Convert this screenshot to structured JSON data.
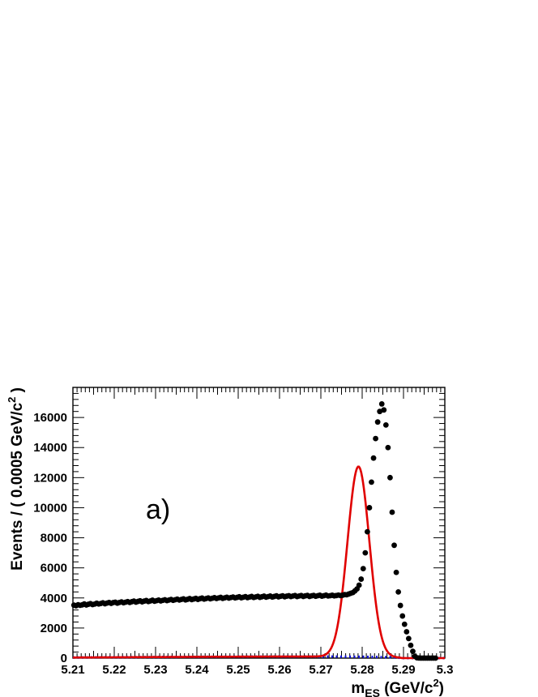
{
  "chart_data": {
    "type": "scatter",
    "panel_label": "a)",
    "xlabel": {
      "main": "m",
      "sub": "ES",
      "unit_open": " (GeV/c",
      "sup": "2",
      "unit_close": ")"
    },
    "ylabel": {
      "main": "Events / ( 0.0005 GeV/c",
      "sup": "2",
      "close": " )"
    },
    "xlim": [
      5.21,
      5.3
    ],
    "ylim": [
      0,
      18000
    ],
    "x_ticks": [
      "5.21",
      "5.22",
      "5.23",
      "5.24",
      "5.25",
      "5.26",
      "5.27",
      "5.28",
      "5.29",
      "5.3"
    ],
    "y_ticks": [
      "0",
      "2000",
      "4000",
      "6000",
      "8000",
      "10000",
      "12000",
      "14000",
      "16000"
    ],
    "bin_width": 0.0005,
    "series": [
      {
        "kind": "data_points",
        "color": "#000000",
        "x_start": 5.21025,
        "values": [
          3520,
          3480,
          3550,
          3510,
          3540,
          3600,
          3530,
          3580,
          3620,
          3560,
          3590,
          3650,
          3600,
          3630,
          3680,
          3610,
          3660,
          3700,
          3640,
          3690,
          3720,
          3650,
          3700,
          3740,
          3680,
          3720,
          3760,
          3700,
          3750,
          3790,
          3720,
          3770,
          3810,
          3740,
          3790,
          3830,
          3760,
          3800,
          3850,
          3780,
          3820,
          3860,
          3800,
          3840,
          3880,
          3820,
          3860,
          3900,
          3840,
          3880,
          3920,
          3860,
          3900,
          3940,
          3870,
          3910,
          3960,
          3890,
          3930,
          3970,
          3900,
          3950,
          3990,
          3920,
          3960,
          4000,
          3940,
          3980,
          4020,
          3960,
          4000,
          4040,
          3970,
          4010,
          4050,
          3990,
          4030,
          4060,
          4000,
          4040,
          4080,
          4010,
          4050,
          4090,
          4020,
          4060,
          4100,
          4030,
          4070,
          4110,
          4040,
          4080,
          4120,
          4050,
          4090,
          4130,
          4060,
          4100,
          4140,
          4070,
          4110,
          4140,
          4080,
          4120,
          4150,
          4090,
          4130,
          4160,
          4090,
          4130,
          4160,
          4100,
          4140,
          4170,
          4100,
          4140,
          4170,
          4110,
          4150,
          4180,
          4120,
          4150,
          4190,
          4130,
          4150,
          4180,
          4140,
          4160,
          4190,
          4160,
          4180,
          4220,
          4210,
          4260,
          4310,
          4360,
          4470,
          4600,
          4850,
          5250,
          5950,
          7000,
          8400,
          10000,
          11700,
          13300,
          14600,
          15700,
          16400,
          16900,
          16500,
          15500,
          14000,
          12000,
          9700,
          7500,
          5700,
          4400,
          3500,
          2800,
          2250,
          1750,
          1300,
          850,
          450,
          120,
          20,
          5,
          0,
          0,
          0,
          0,
          0,
          0,
          0,
          0
        ]
      },
      {
        "kind": "total_fit",
        "color": "#e00000",
        "style": "solid"
      },
      {
        "kind": "background_fit",
        "color": "#1010e0",
        "style": "dotted"
      }
    ]
  }
}
